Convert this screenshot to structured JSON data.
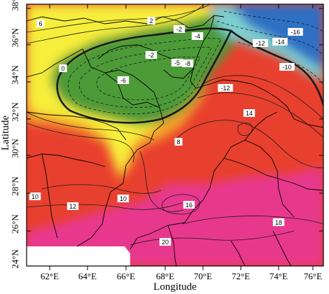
{
  "map": {
    "x_axis_title": "Longitude",
    "y_axis_title": "Latitude",
    "x_ticks": [
      "62°E",
      "64°E",
      "66°E",
      "68°E",
      "70°E",
      "72°E",
      "74°E",
      "76°E"
    ],
    "y_ticks": [
      "38°N",
      "36°N",
      "34°N",
      "32°N",
      "30°N",
      "28°N",
      "26°N",
      "24°N"
    ],
    "contour_labels": [
      "6",
      "2",
      "-2",
      "-4",
      "-16",
      "-12",
      "-14",
      "0",
      "-2",
      "-5",
      "-8",
      "-6",
      "-10",
      "-12",
      "14",
      "8",
      "10",
      "12",
      "10",
      "16",
      "18",
      "20"
    ],
    "color_scale": {
      "magenta": "#e8388e",
      "red": "#e8402e",
      "orange": "#f4a02a",
      "yellow": "#f6ee3a",
      "green": "#4e9a38",
      "cyan": "#7ecfd0",
      "blue": "#2f6fc4"
    }
  }
}
